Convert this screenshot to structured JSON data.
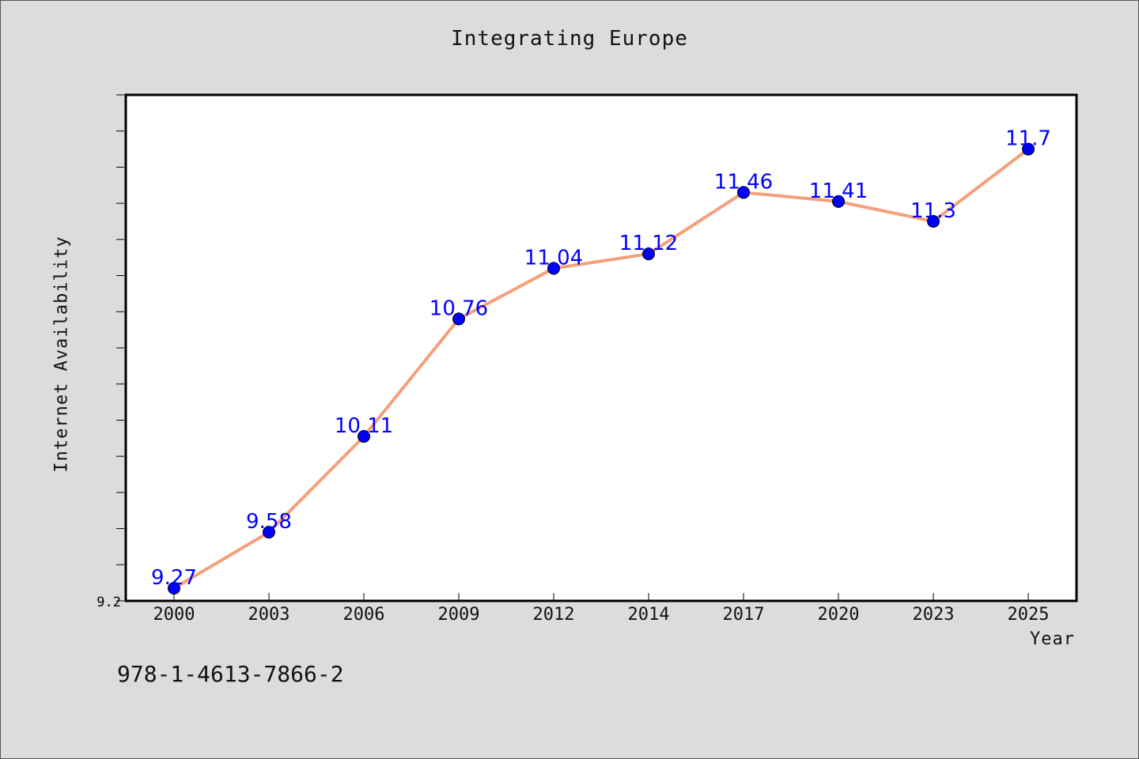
{
  "chart_data": {
    "type": "line",
    "title": "Integrating Europe",
    "xlabel": "Year",
    "ylabel": "Internet Availability",
    "categories": [
      "2000",
      "2003",
      "2006",
      "2009",
      "2012",
      "2014",
      "2017",
      "2020",
      "2023",
      "2025"
    ],
    "series": [
      {
        "values": [
          9.27,
          9.58,
          10.11,
          10.76,
          11.04,
          11.12,
          11.46,
          11.41,
          11.3,
          11.7
        ]
      }
    ],
    "data_labels": [
      "9.27",
      "9.58",
      "10.11",
      "10.76",
      "11.04",
      "11.12",
      "11.46",
      "11.41",
      "11.3",
      "11.7"
    ],
    "ylim": [
      9.2,
      12.0
    ],
    "y_tick_label": "9.2",
    "grid": false,
    "legend": "none",
    "colors": {
      "line": "#f4a07a",
      "marker": "#0000ff",
      "data_label": "#0000ff",
      "plot_background": "#ffffff",
      "figure_background": "#dcdcdc"
    }
  },
  "footer": {
    "text": "978-1-4613-7866-2"
  }
}
